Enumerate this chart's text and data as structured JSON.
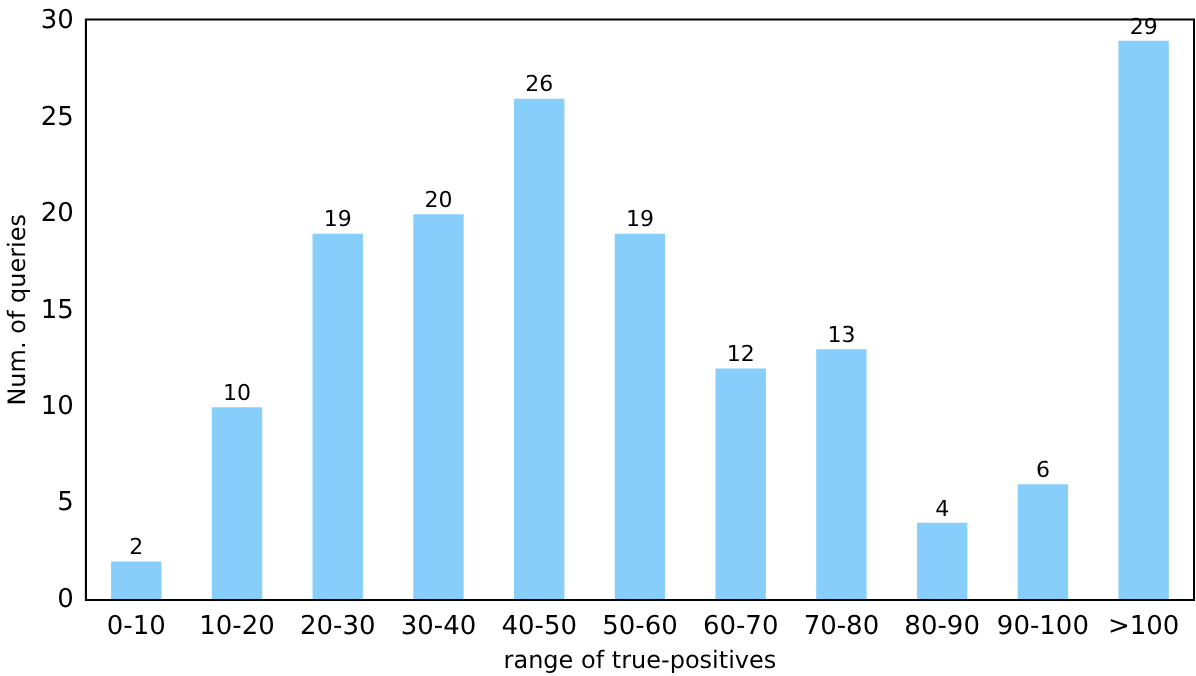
{
  "chart_data": {
    "type": "bar",
    "xlabel": "range of true-positives",
    "ylabel": "Num. of queries",
    "categories": [
      "0-10",
      "10-20",
      "20-30",
      "30-40",
      "40-50",
      "50-60",
      "60-70",
      "70-80",
      "80-90",
      "90-100",
      ">100"
    ],
    "values": [
      2,
      10,
      19,
      20,
      26,
      19,
      12,
      13,
      4,
      6,
      29
    ],
    "color": "#87cefa",
    "ylim": [
      0,
      30.1
    ],
    "yticks": [
      0,
      5,
      10,
      15,
      20,
      25,
      30
    ],
    "grid": false,
    "legend": false,
    "data_labels": true
  }
}
